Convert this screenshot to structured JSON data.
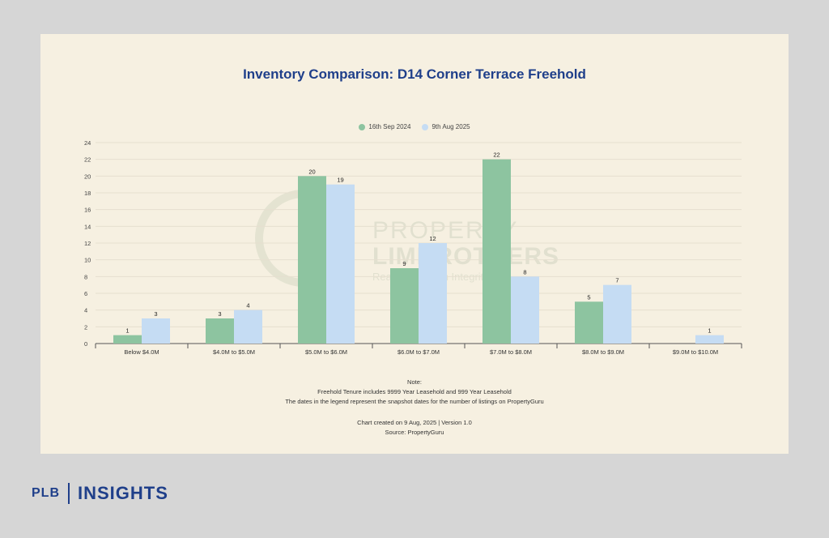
{
  "brand": {
    "left": "PLB",
    "right": "INSIGHTS"
  },
  "watermark": {
    "line1": "PROPERTY",
    "line2": "LIMBROTHERS",
    "line3": "Real Estate with Integrity"
  },
  "notes": {
    "heading": "Note:",
    "line1": "Freehold Tenure includes 9999 Year Leasehold and 999 Year Leasehold",
    "line2": "The dates in the legend represent the snapshot dates for the number of listings on PropertyGuru",
    "created": "Chart created on 9 Aug, 2025 | Version 1.0",
    "source": "Source: PropertyGuru"
  },
  "colors": {
    "series1": "#8dc4a0",
    "series2": "#c5dcf3",
    "title": "#1f3f8a"
  },
  "chart_data": {
    "type": "bar",
    "title": "Inventory Comparison: D14 Corner Terrace Freehold",
    "xlabel": "",
    "ylabel": "",
    "ylim": [
      0,
      24
    ],
    "yticks": [
      0,
      2,
      4,
      6,
      8,
      10,
      12,
      14,
      16,
      18,
      20,
      22,
      24
    ],
    "grid": true,
    "legend_position": "top-center",
    "categories": [
      "Below $4.0M",
      "$4.0M to $5.0M",
      "$5.0M to $6.0M",
      "$6.0M to $7.0M",
      "$7.0M to $8.0M",
      "$8.0M to $9.0M",
      "$9.0M to $10.0M"
    ],
    "series": [
      {
        "name": "16th Sep 2024",
        "values": [
          1,
          3,
          20,
          9,
          22,
          5,
          0
        ]
      },
      {
        "name": "9th Aug 2025",
        "values": [
          3,
          4,
          19,
          12,
          8,
          7,
          1
        ]
      }
    ]
  }
}
